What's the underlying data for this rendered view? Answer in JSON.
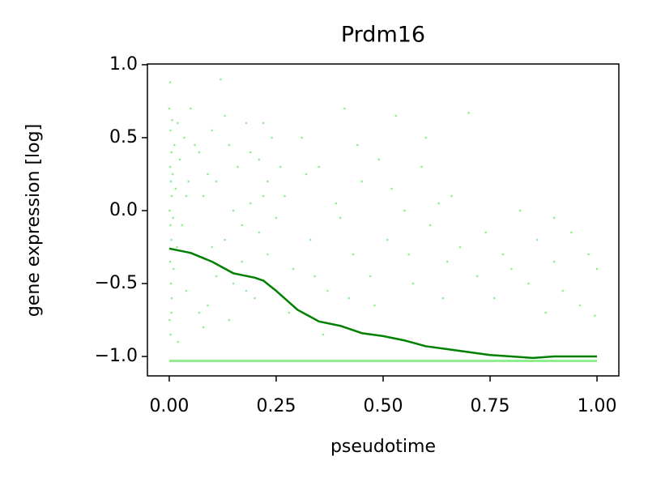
{
  "chart_data": {
    "type": "scatter",
    "title": "Prdm16",
    "x_label": "pseudotime",
    "y_label": "gene expression [log]",
    "xlim": [
      -0.051,
      1.051
    ],
    "ylim": [
      -1.133,
      1.005
    ],
    "xticks": [
      {
        "value": 0,
        "label": "0.00"
      },
      {
        "value": 0.25,
        "label": "0.25"
      },
      {
        "value": 0.5,
        "label": "0.50"
      },
      {
        "value": 0.75,
        "label": "0.75"
      },
      {
        "value": 1,
        "label": "1.00"
      }
    ],
    "yticks": [
      {
        "value": -1,
        "label": "−1.0"
      },
      {
        "value": -0.5,
        "label": "−0.5"
      },
      {
        "value": 0,
        "label": "0.0"
      },
      {
        "value": 0.5,
        "label": "0.5"
      },
      {
        "value": 1,
        "label": "1.0"
      }
    ],
    "series": [
      {
        "kind": "scatter",
        "color": "#90ee90",
        "x": [
          0,
          0.003,
          0.005,
          0.002,
          0.004,
          0.006,
          0.001,
          0.003,
          0.005,
          0.002,
          0.004,
          0.006,
          0.001,
          0.003,
          0.007,
          0.008,
          0.009,
          0.01,
          0.002,
          0.005,
          0.012,
          0.015,
          0.018,
          0.02,
          0.025,
          0.03,
          0.035,
          0.04,
          0.045,
          0.05,
          0.06,
          0.07,
          0.08,
          0.09,
          0.1,
          0.11,
          0.12,
          0.13,
          0.14,
          0.15,
          0.16,
          0.17,
          0.18,
          0.19,
          0.2,
          0.21,
          0.22,
          0.23,
          0.24,
          0.25,
          0.07,
          0.09,
          0.11,
          0.13,
          0.15,
          0.17,
          0.19,
          0.21,
          0.23,
          0.08,
          0.27,
          0.29,
          0.31,
          0.33,
          0.35,
          0.37,
          0.39,
          0.41,
          0.43,
          0.45,
          0.47,
          0.49,
          0.51,
          0.53,
          0.55,
          0.57,
          0.59,
          0.61,
          0.63,
          0.65,
          0.28,
          0.32,
          0.36,
          0.4,
          0.44,
          0.48,
          0.52,
          0.56,
          0.6,
          0.64,
          0.66,
          0.68,
          0.7,
          0.72,
          0.74,
          0.76,
          0.78,
          0.8,
          0.82,
          0.84,
          0.86,
          0.88,
          0.9,
          0.92,
          0.94,
          0.96,
          0.98,
          1.0,
          0.995,
          0.9,
          0.02,
          0.04,
          0.06,
          0.1,
          0.14,
          0.18,
          0.22,
          0.26,
          0.34,
          0.42
        ],
        "values": [
          0.7,
          0.55,
          0.4,
          0.3,
          0.2,
          0.1,
          0,
          -0.1,
          -0.2,
          -0.35,
          -0.5,
          -0.6,
          -0.75,
          -0.85,
          0.62,
          0.25,
          -0.05,
          -0.4,
          0.88,
          -0.7,
          0.45,
          0.15,
          -0.25,
          0.6,
          0.35,
          -0.1,
          0.5,
          -0.55,
          0.2,
          0.7,
          -0.3,
          0.4,
          0.1,
          -0.65,
          0.55,
          0.2,
          0.9,
          -0.2,
          0.45,
          -0.5,
          0.3,
          -0.1,
          0.6,
          0.05,
          -0.6,
          0.35,
          0.1,
          -0.3,
          0.5,
          -0.05,
          -0.7,
          0.25,
          -0.45,
          0.65,
          0,
          -0.35,
          0.4,
          -0.15,
          0.2,
          -0.8,
          0.1,
          -0.4,
          0.5,
          -0.2,
          0.3,
          -0.55,
          0.05,
          0.7,
          -0.3,
          0.2,
          -0.45,
          0.35,
          -0.2,
          0.65,
          0,
          -0.5,
          0.3,
          -0.1,
          0.05,
          -0.35,
          -0.7,
          0.25,
          -0.85,
          -0.05,
          0.45,
          -0.65,
          0.15,
          -0.3,
          0.5,
          -0.6,
          0.1,
          -0.25,
          0.67,
          -0.45,
          -0.15,
          -0.6,
          -0.3,
          -0.4,
          0,
          -0.5,
          -0.2,
          -0.7,
          -0.35,
          -0.55,
          -0.15,
          -0.65,
          -0.3,
          -0.4,
          -0.72,
          -0.05,
          -0.9,
          0.1,
          0.45,
          -0.25,
          -0.75,
          -0.55,
          0.6,
          0.3,
          -0.45,
          -0.6
        ]
      },
      {
        "kind": "line",
        "color": "#90ee90",
        "width": 3,
        "x": [
          0,
          1
        ],
        "values": [
          -1.03,
          -1.03
        ]
      },
      {
        "kind": "line",
        "color": "#008000",
        "width": 2.5,
        "x": [
          0,
          0.05,
          0.1,
          0.15,
          0.2,
          0.22,
          0.25,
          0.3,
          0.35,
          0.4,
          0.45,
          0.5,
          0.55,
          0.6,
          0.65,
          0.7,
          0.75,
          0.8,
          0.85,
          0.9,
          1.0
        ],
        "values": [
          -0.26,
          -0.29,
          -0.35,
          -0.43,
          -0.46,
          -0.48,
          -0.55,
          -0.68,
          -0.76,
          -0.79,
          -0.84,
          -0.86,
          -0.89,
          -0.93,
          -0.95,
          -0.97,
          -0.99,
          -1.0,
          -1.01,
          -1.0,
          -1.0
        ]
      }
    ]
  }
}
